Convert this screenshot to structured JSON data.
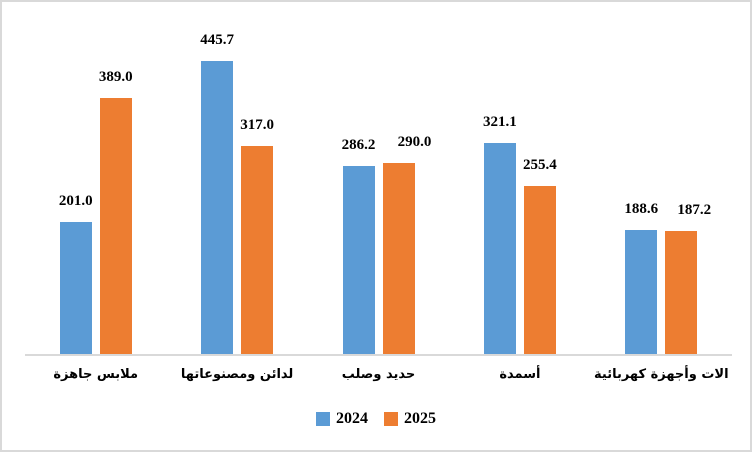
{
  "chart_data": {
    "type": "bar",
    "title": "",
    "xlabel": "",
    "ylabel": "",
    "categories": [
      "ملابس جاهزة",
      "لدائن ومصنوعاتها",
      "حديد وصلب",
      "أسمدة",
      "الات وأجهزة كهربائية"
    ],
    "series": [
      {
        "name": "2024",
        "color": "#5B9BD5",
        "values": [
          201.0,
          445.7,
          286.2,
          321.1,
          188.6
        ]
      },
      {
        "name": "2025",
        "color": "#ED7D31",
        "values": [
          389.0,
          317.0,
          290.0,
          255.4,
          187.2
        ]
      }
    ],
    "value_label_decimals": 1,
    "ylim": [
      0,
      460
    ],
    "grid": false,
    "legend_position": "bottom-center",
    "axis_line_color": "#D9D9D9",
    "text_color": "#000000",
    "label_dx": [
      [
        0,
        0,
        0,
        0,
        0
      ],
      [
        0,
        0,
        16,
        0,
        13
      ]
    ]
  }
}
